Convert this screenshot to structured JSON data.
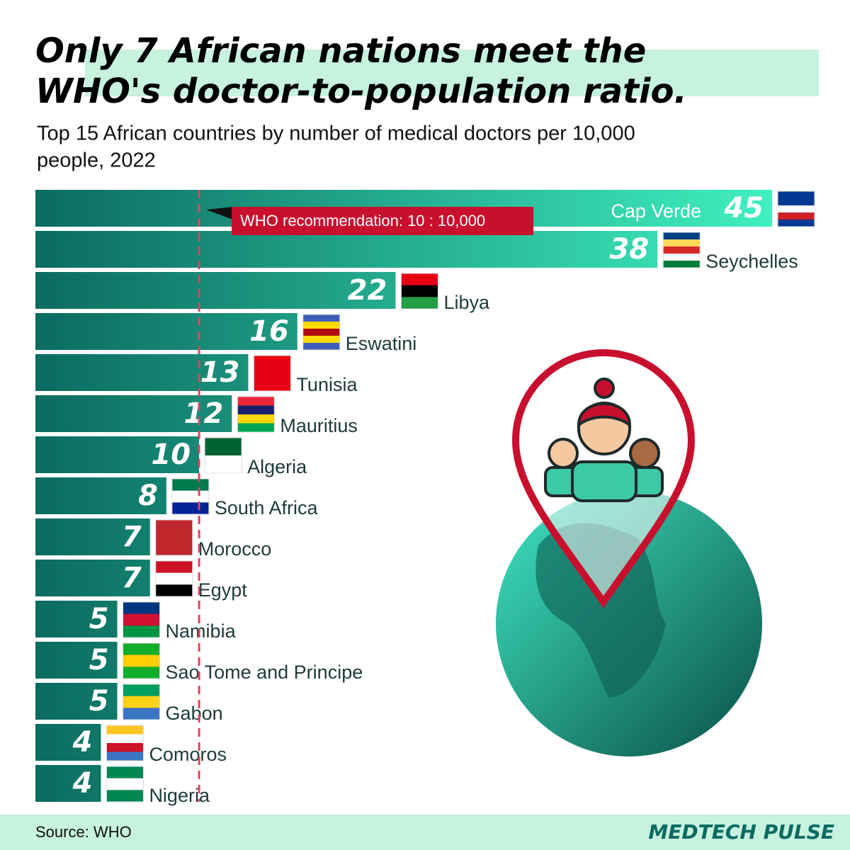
{
  "chart_data": {
    "type": "bar",
    "orientation": "horizontal",
    "title_lines": [
      "Only 7 African nations meet the",
      "WHO's doctor-to-population ratio."
    ],
    "subtitle_lines": [
      "Top 15 African countries by number of medical doctors per 10,000",
      "people, 2022"
    ],
    "categories": [
      "Cap Verde",
      "Seychelles",
      "Libya",
      "Eswatini",
      "Tunisia",
      "Mauritius",
      "Algeria",
      "South Africa",
      "Morocco",
      "Egypt",
      "Namibia",
      "Sao Tome and Principe",
      "Gabon",
      "Comoros",
      "Nigeria"
    ],
    "values": [
      45,
      38,
      22,
      16,
      13,
      12,
      10,
      8,
      7,
      7,
      5,
      5,
      5,
      4,
      4
    ],
    "xlim": [
      0,
      45
    ],
    "reference_line": {
      "value": 10,
      "label": "WHO recommendation: 10 : 10,000",
      "color": "#e0435e"
    },
    "colors": [
      "#0b6b60",
      "#3ff0c0"
    ],
    "source": "Source: WHO",
    "brand": "MEDTECH PULSE"
  }
}
